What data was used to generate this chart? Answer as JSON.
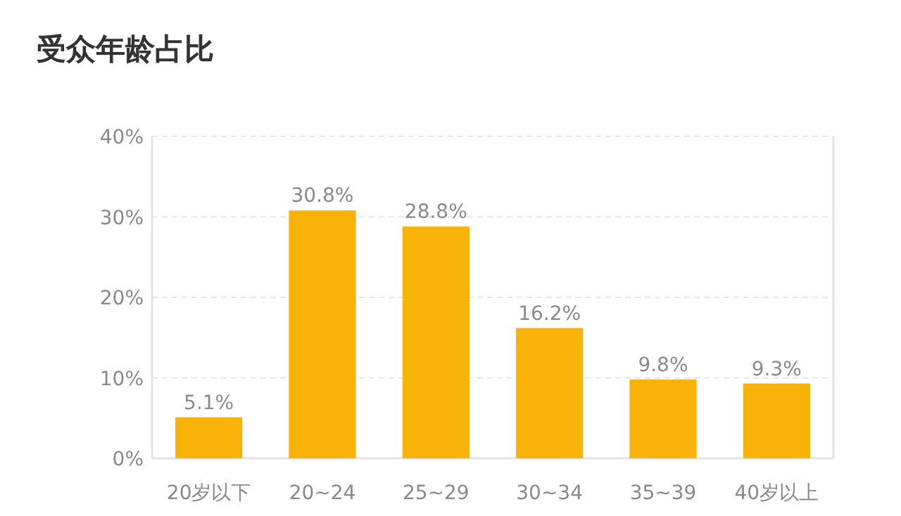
{
  "chart_data": {
    "type": "bar",
    "title": "受众年龄占比",
    "categories": [
      "20岁以下",
      "20~24",
      "25~29",
      "30~34",
      "35~39",
      "40岁以上"
    ],
    "values": [
      5.1,
      30.8,
      28.8,
      16.2,
      9.8,
      9.3
    ],
    "value_labels": [
      "5.1%",
      "30.8%",
      "28.8%",
      "16.2%",
      "9.8%",
      "9.3%"
    ],
    "color": "#f9b208",
    "ylim": [
      0,
      40
    ],
    "yticks": [
      {
        "value": 0,
        "label": "0%"
      },
      {
        "value": 10,
        "label": "10%"
      },
      {
        "value": 20,
        "label": "20%"
      },
      {
        "value": 30,
        "label": "30%"
      },
      {
        "value": 40,
        "label": "40%"
      }
    ],
    "grid": "y"
  }
}
